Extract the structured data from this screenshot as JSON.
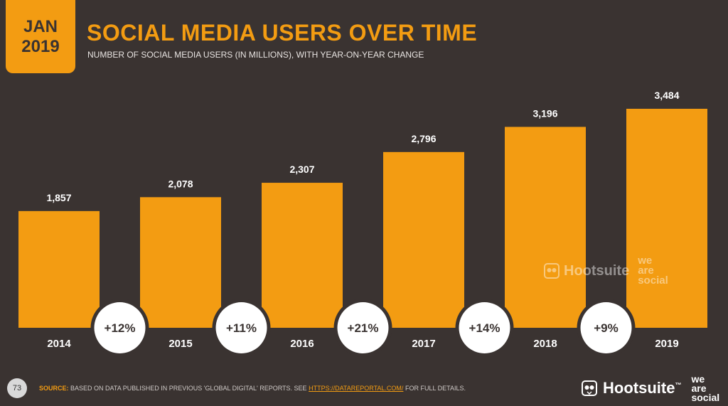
{
  "header": {
    "badge_month": "JAN",
    "badge_year": "2019",
    "title": "SOCIAL MEDIA USERS OVER TIME",
    "subtitle": "NUMBER OF SOCIAL MEDIA USERS (IN MILLIONS), WITH YEAR-ON-YEAR CHANGE"
  },
  "chart_data": {
    "type": "bar",
    "categories": [
      "2014",
      "2015",
      "2016",
      "2017",
      "2018",
      "2019"
    ],
    "values": [
      1857,
      2078,
      2307,
      2796,
      3196,
      3484
    ],
    "value_labels": [
      "1,857",
      "2,078",
      "2,307",
      "2,796",
      "3,196",
      "3,484"
    ],
    "yoy_changes": [
      "+12%",
      "+11%",
      "+21%",
      "+14%",
      "+9%"
    ],
    "title": "SOCIAL MEDIA USERS OVER TIME",
    "xlabel": "",
    "ylabel": "",
    "ylim": [
      0,
      3484
    ],
    "grid": false,
    "colors": {
      "bar": "#f39c12",
      "background": "#3a3331",
      "circle": "#ffffff",
      "circle_text": "#3a3331"
    }
  },
  "footer": {
    "page_number": "73",
    "source_label": "SOURCE:",
    "source_text": "BASED ON DATA PUBLISHED IN PREVIOUS 'GLOBAL DIGITAL' REPORTS. SEE",
    "source_link": "HTTPS://DATAREPORTAL.COM/",
    "source_suffix": "FOR FULL DETAILS.",
    "brand_hootsuite": "Hootsuite",
    "brand_tm": "™",
    "brand_was_1": "we",
    "brand_was_2": "are",
    "brand_was_3": "social"
  }
}
